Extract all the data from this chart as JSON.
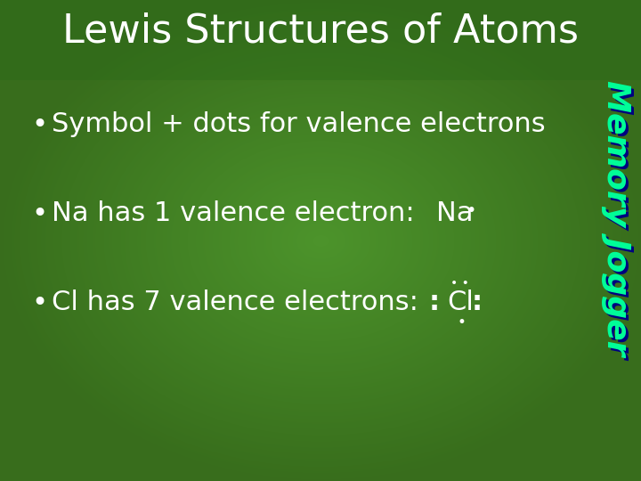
{
  "title": "Lewis Structures of Atoms",
  "title_color": "#ffffff",
  "title_fontsize": 32,
  "bg_color": "#3a8a2a",
  "bullet1": "Symbol + dots for valence electrons",
  "bullet2": "Na has 1 valence electron:",
  "bullet3": "Cl has 7 valence electrons:",
  "na_symbol": "Na",
  "cl_symbol": "Cl",
  "text_color": "#ffffff",
  "bullet_fontsize": 22,
  "memory_jogger_text": "Memory Jogger",
  "memory_jogger_color_fill": "#00ff99",
  "memory_jogger_shadow": "#000080",
  "dot_color": "#ffffff",
  "gradient_left": "#2d7a1e",
  "gradient_right": "#4da830",
  "title_bg": "#266018"
}
